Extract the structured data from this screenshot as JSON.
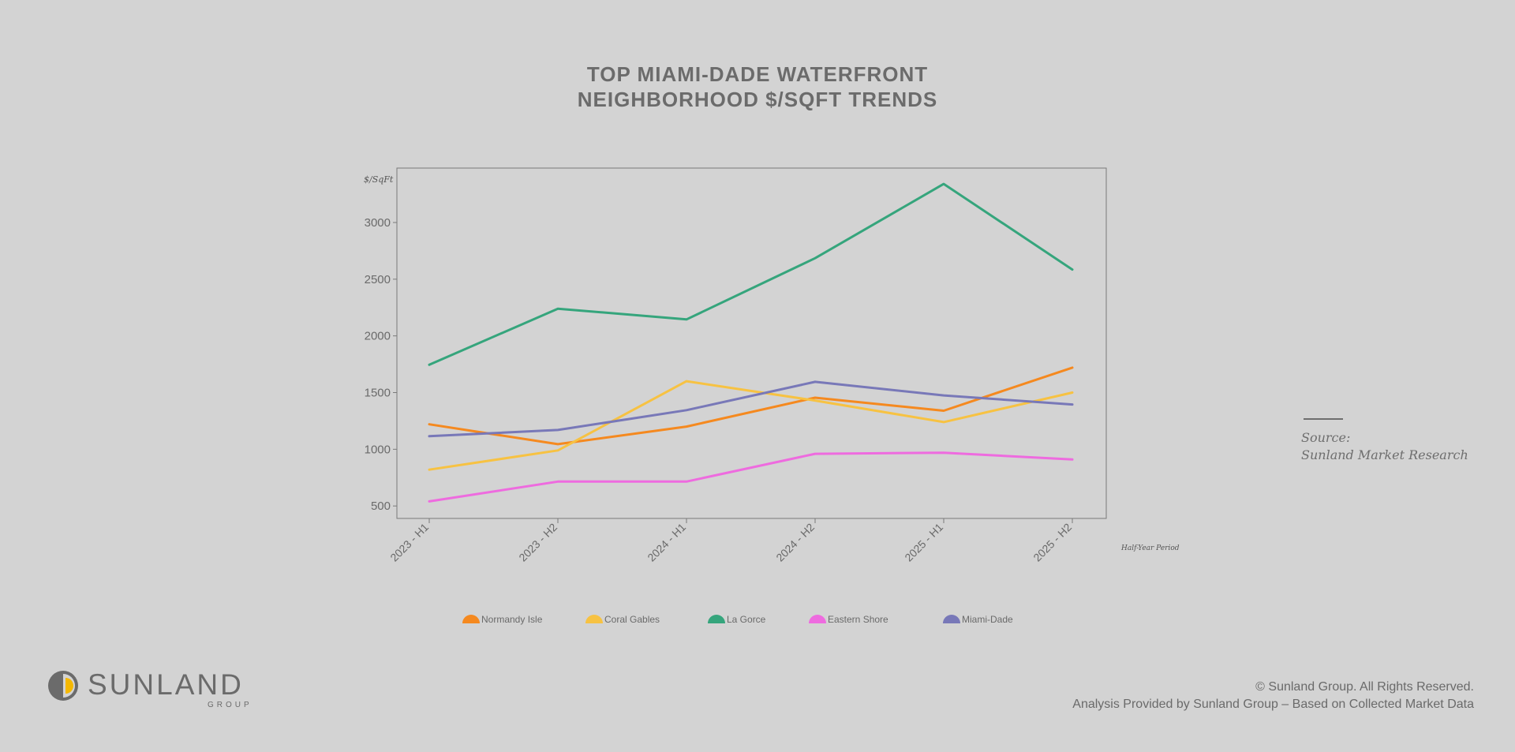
{
  "title": {
    "line1": "TOP MIAMI-DADE WATERFRONT",
    "line2": "NEIGHBORHOOD $/SQFT TRENDS"
  },
  "source": {
    "label": "Source:",
    "name": "Sunland Market Research"
  },
  "logo": {
    "word": "SUNLAND",
    "sub": "GROUP",
    "colors": {
      "dark": "#6b6b6b",
      "accent": "#f5b800"
    }
  },
  "footer": {
    "copyright": "© Sunland Group. All Rights Reserved.",
    "analysis": "Analysis Provided by Sunland Group – Based on Collected Market Data"
  },
  "chart_data": {
    "type": "line",
    "ylabel": "$/SqFt",
    "xlabel": "Half-Year Period",
    "categories": [
      "2023 - H1",
      "2023 - H2",
      "2024 - H1",
      "2024 - H2",
      "2025 - H1",
      "2025 - H2"
    ],
    "ylim": [
      390,
      3480
    ],
    "yticks": [
      500,
      1000,
      1500,
      2000,
      2500,
      3000
    ],
    "grid": false,
    "legend_position": "bottom",
    "series": [
      {
        "name": "Normandy Isle",
        "color": "#f5891f",
        "values": [
          1220,
          1045,
          1200,
          1455,
          1340,
          1720
        ]
      },
      {
        "name": "Coral Gables",
        "color": "#f7c242",
        "values": [
          820,
          990,
          1600,
          1430,
          1240,
          1500
        ]
      },
      {
        "name": "La Gorce",
        "color": "#35a57c",
        "values": [
          1745,
          2240,
          2145,
          2685,
          3340,
          2585
        ]
      },
      {
        "name": "Eastern Shore",
        "color": "#ee6bdf",
        "values": [
          540,
          715,
          715,
          960,
          970,
          910
        ]
      },
      {
        "name": "Miami-Dade",
        "color": "#7878b8",
        "values": [
          1115,
          1170,
          1345,
          1595,
          1475,
          1395
        ]
      }
    ]
  }
}
